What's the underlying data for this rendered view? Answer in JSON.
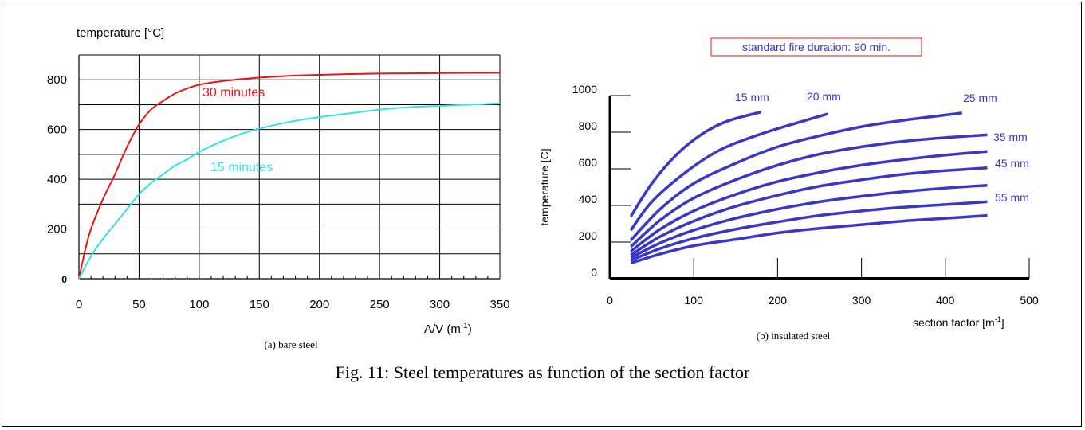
{
  "figure": {
    "caption": "Fig. 11: Steel temperatures as function of the section factor"
  },
  "chart_data": [
    {
      "type": "line",
      "subtitle": "(a) bare steel",
      "ylabel": "temperature [°C]",
      "xlabel": "A/V (m",
      "xlabel_sup": "-1",
      "xlabel_close": ")",
      "xlim": [
        0,
        350
      ],
      "ylim": [
        0,
        900
      ],
      "xticks": [
        0,
        50,
        100,
        150,
        200,
        250,
        300,
        350
      ],
      "yticks": [
        0,
        200,
        400,
        600,
        800
      ],
      "grid": true,
      "series": [
        {
          "name": "30 minutes",
          "color": "#e8141a",
          "x": [
            0,
            5,
            10,
            20,
            30,
            40,
            50,
            60,
            70,
            80,
            90,
            100,
            120,
            140,
            160,
            180,
            200,
            225,
            250,
            275,
            300,
            325,
            350
          ],
          "y": [
            0,
            110,
            200,
            320,
            420,
            530,
            620,
            680,
            715,
            745,
            765,
            780,
            795,
            805,
            812,
            817,
            820,
            823,
            825,
            826,
            827,
            828,
            828
          ]
        },
        {
          "name": "15 minutes",
          "color": "#33e3e3",
          "x": [
            0,
            10,
            20,
            30,
            40,
            50,
            60,
            70,
            80,
            90,
            100,
            120,
            140,
            160,
            180,
            200,
            225,
            250,
            275,
            300,
            325,
            350
          ],
          "y": [
            0,
            90,
            160,
            220,
            280,
            340,
            385,
            420,
            455,
            480,
            510,
            555,
            590,
            615,
            635,
            650,
            665,
            680,
            690,
            695,
            700,
            705
          ]
        }
      ]
    },
    {
      "type": "line",
      "title": "standard fire duration: 90 min.",
      "subtitle": "(b) insulated steel",
      "ylabel": "temperature [C]",
      "xlabel": "section factor [m",
      "xlabel_sup": "-1",
      "xlabel_close": "]",
      "xlim": [
        0,
        500
      ],
      "ylim": [
        0,
        1000
      ],
      "xticks": [
        0,
        100,
        200,
        300,
        400,
        500
      ],
      "yticks": [
        0,
        200,
        400,
        600,
        800,
        1000
      ],
      "grid": false,
      "series_color": "#3a37c4",
      "series": [
        {
          "name": "15 mm",
          "x": [
            25,
            50,
            80,
            110,
            140,
            180
          ],
          "y": [
            340,
            520,
            680,
            790,
            860,
            910
          ]
        },
        {
          "name": "20 mm",
          "x": [
            25,
            50,
            90,
            130,
            180,
            230,
            260
          ],
          "y": [
            265,
            420,
            580,
            700,
            790,
            860,
            900
          ]
        },
        {
          "name": "25 mm",
          "x": [
            25,
            60,
            100,
            150,
            200,
            250,
            300,
            350,
            420
          ],
          "y": [
            210,
            380,
            520,
            630,
            720,
            780,
            830,
            865,
            905
          ]
        },
        {
          "name": "",
          "x": [
            25,
            60,
            100,
            150,
            200,
            250,
            300,
            350,
            400,
            450
          ],
          "y": [
            175,
            320,
            440,
            540,
            620,
            680,
            720,
            750,
            770,
            785
          ]
        },
        {
          "name": "35 mm",
          "x": [
            25,
            60,
            100,
            150,
            200,
            250,
            300,
            350,
            400,
            450
          ],
          "y": [
            150,
            270,
            370,
            460,
            530,
            580,
            620,
            650,
            675,
            695
          ]
        },
        {
          "name": "",
          "x": [
            25,
            60,
            100,
            150,
            200,
            250,
            300,
            350,
            400,
            450
          ],
          "y": [
            130,
            230,
            315,
            395,
            455,
            505,
            540,
            570,
            590,
            605
          ]
        },
        {
          "name": "45 mm",
          "x": [
            25,
            60,
            100,
            150,
            200,
            250,
            300,
            350,
            400,
            450
          ],
          "y": [
            115,
            195,
            265,
            330,
            380,
            420,
            450,
            475,
            495,
            510
          ]
        },
        {
          "name": "",
          "x": [
            25,
            60,
            100,
            150,
            200,
            250,
            300,
            350,
            400,
            450
          ],
          "y": [
            100,
            165,
            220,
            270,
            310,
            345,
            370,
            390,
            405,
            420
          ]
        },
        {
          "name": "55 mm",
          "x": [
            25,
            60,
            100,
            150,
            200,
            250,
            300,
            350,
            400,
            450
          ],
          "y": [
            85,
            135,
            180,
            215,
            250,
            275,
            295,
            315,
            330,
            345
          ]
        }
      ]
    }
  ]
}
